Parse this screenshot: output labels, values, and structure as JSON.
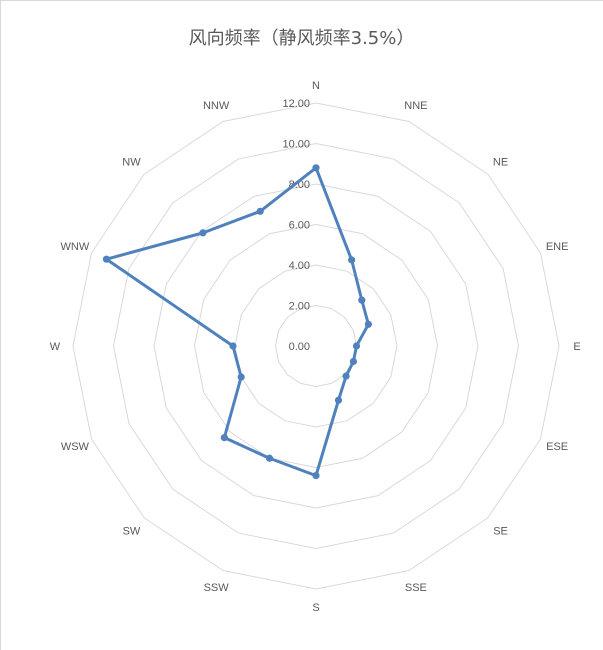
{
  "chart_data": {
    "type": "radar",
    "title": "风向频率（静风频率3.5%）",
    "categories": [
      "N",
      "NNE",
      "NE",
      "ENE",
      "E",
      "ESE",
      "SE",
      "SSE",
      "S",
      "SSW",
      "SW",
      "WSW",
      "W",
      "WNW",
      "NW",
      "NNW"
    ],
    "series": [
      {
        "values": [
          8.8,
          4.6,
          3.2,
          2.8,
          2.0,
          2.0,
          2.1,
          2.9,
          6.4,
          6.0,
          6.4,
          4.0,
          4.1,
          11.2,
          7.9,
          7.2
        ],
        "color": "#4f81bd"
      }
    ],
    "rlim": [
      0,
      12
    ],
    "ticks": [
      "0.00",
      "2.00",
      "4.00",
      "6.00",
      "8.00",
      "10.00",
      "12.00"
    ],
    "grid": true,
    "grid_color": "#d9d9d9",
    "legend": "none"
  }
}
